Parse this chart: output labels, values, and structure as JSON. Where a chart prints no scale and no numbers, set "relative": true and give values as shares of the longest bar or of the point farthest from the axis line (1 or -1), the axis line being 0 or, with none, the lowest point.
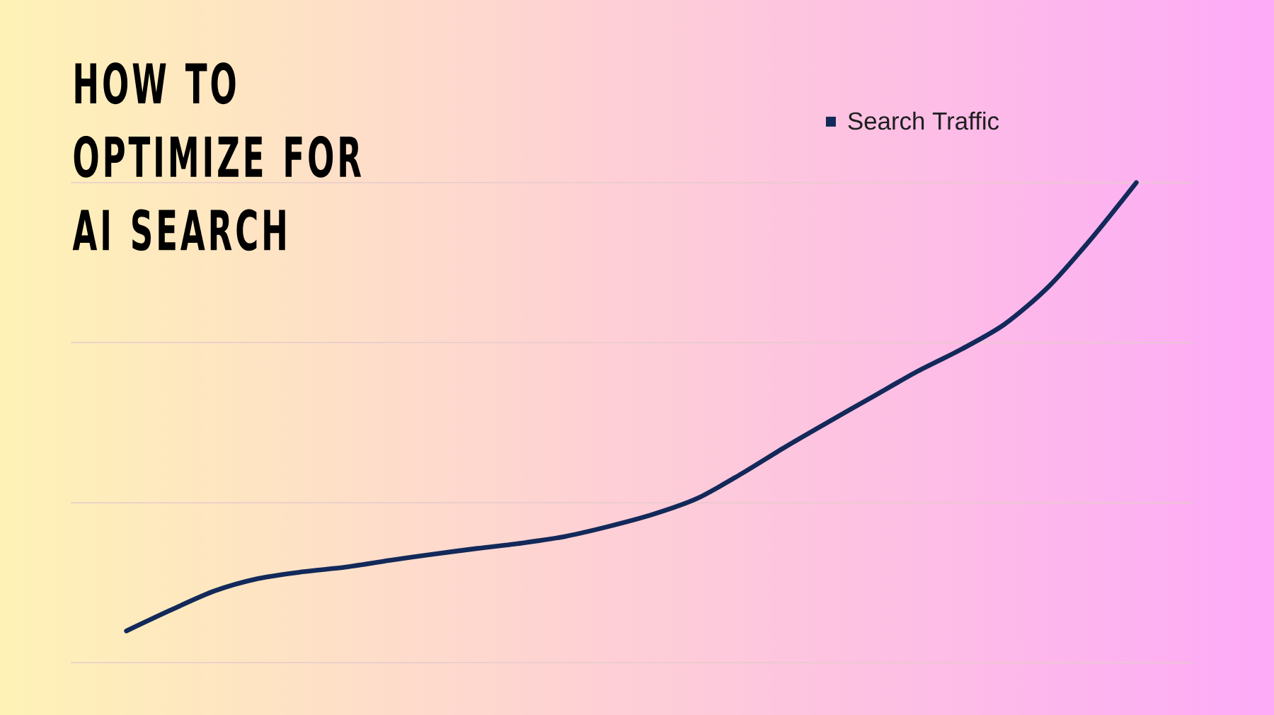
{
  "chart_data": {
    "type": "line",
    "title": "HOW TO OPTIMIZE FOR AI SEARCH",
    "relative": true,
    "legend": "top right",
    "ref_lines": [
      {
        "axis": "y",
        "value": 0.333,
        "color": "#e6cbcb"
      },
      {
        "axis": "y",
        "value": 0.667,
        "color": "#e6cbcb"
      },
      {
        "axis": "y",
        "value": 1,
        "color": "#e6cbcb"
      }
    ],
    "categories": [
      null,
      null,
      null,
      null,
      null,
      null,
      null,
      null,
      null,
      null,
      null,
      null,
      null,
      null,
      null,
      null,
      null,
      null,
      null,
      null,
      null,
      null,
      null,
      null
    ],
    "series": [
      {
        "name": "Search Traffic",
        "color": "#12295a",
        "values": [
          0.066,
          0.109,
          0.149,
          0.175,
          0.189,
          0.199,
          0.213,
          0.226,
          0.238,
          0.249,
          0.263,
          0.284,
          0.309,
          0.342,
          0.393,
          0.449,
          0.502,
          0.554,
          0.606,
          0.652,
          0.705,
          0.783,
          0.886,
          1
        ]
      }
    ]
  }
}
